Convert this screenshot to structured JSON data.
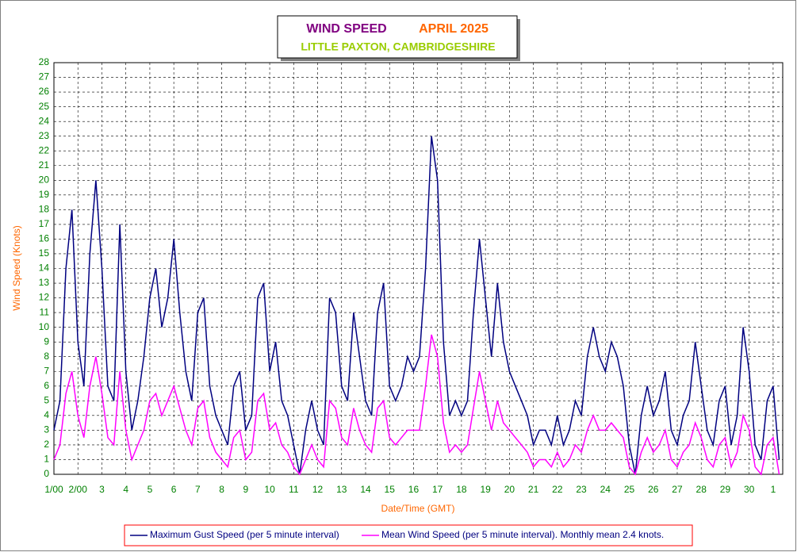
{
  "chart_data": {
    "type": "line",
    "title": "WIND SPEED",
    "title_period": "APRIL 2025",
    "subtitle": "LITTLE PAXTON, CAMBRIDGESHIRE",
    "xlabel": "Date/Time (GMT)",
    "ylabel": "Wind Speed (Knots)",
    "xlim": [
      1,
      31.4
    ],
    "ylim": [
      0,
      28
    ],
    "grid": true,
    "xticks": [
      {
        "value": 1,
        "label": "1/00"
      },
      {
        "value": 2,
        "label": "2/00"
      },
      3,
      4,
      5,
      6,
      7,
      8,
      9,
      10,
      11,
      12,
      13,
      14,
      15,
      16,
      17,
      18,
      19,
      20,
      21,
      22,
      23,
      24,
      25,
      26,
      27,
      28,
      29,
      30,
      {
        "value": 31,
        "label": "1"
      }
    ],
    "yticks": [
      0,
      1,
      2,
      3,
      4,
      5,
      6,
      7,
      8,
      9,
      10,
      11,
      12,
      13,
      14,
      15,
      16,
      17,
      18,
      19,
      20,
      21,
      22,
      23,
      24,
      25,
      26,
      27,
      28
    ],
    "x": [
      1,
      1.25,
      1.5,
      1.75,
      2,
      2.25,
      2.5,
      2.75,
      3,
      3.25,
      3.5,
      3.75,
      4,
      4.25,
      4.5,
      4.75,
      5,
      5.25,
      5.5,
      5.75,
      6,
      6.25,
      6.5,
      6.75,
      7,
      7.25,
      7.5,
      7.75,
      8,
      8.25,
      8.5,
      8.75,
      9,
      9.25,
      9.5,
      9.75,
      10,
      10.25,
      10.5,
      10.75,
      11,
      11.25,
      11.5,
      11.75,
      12,
      12.25,
      12.5,
      12.75,
      13,
      13.25,
      13.5,
      13.75,
      14,
      14.25,
      14.5,
      14.75,
      15,
      15.25,
      15.5,
      15.75,
      16,
      16.25,
      16.5,
      16.75,
      17,
      17.25,
      17.5,
      17.75,
      18,
      18.25,
      18.5,
      18.75,
      19,
      19.25,
      19.5,
      19.75,
      20,
      20.25,
      20.5,
      20.75,
      21,
      21.25,
      21.5,
      21.75,
      22,
      22.25,
      22.5,
      22.75,
      23,
      23.25,
      23.5,
      23.75,
      24,
      24.25,
      24.5,
      24.75,
      25,
      25.25,
      25.5,
      25.75,
      26,
      26.25,
      26.5,
      26.75,
      27,
      27.25,
      27.5,
      27.75,
      28,
      28.25,
      28.5,
      28.75,
      29,
      29.25,
      29.5,
      29.75,
      30,
      30.25,
      30.5,
      30.75,
      31,
      31.25
    ],
    "series": [
      {
        "name": "Maximum Gust Speed (per 5 minute interval)",
        "color": "#000080",
        "values": [
          3,
          5,
          14,
          18,
          9,
          6,
          15,
          20,
          14,
          6,
          5,
          17,
          7,
          3,
          5,
          8,
          12,
          14,
          10,
          12,
          16,
          11,
          7,
          5,
          11,
          12,
          6,
          4,
          3,
          2,
          6,
          7,
          3,
          4,
          12,
          13,
          7,
          9,
          5,
          4,
          2,
          0,
          3,
          5,
          3,
          2,
          12,
          11,
          6,
          5,
          11,
          8,
          5,
          4,
          11,
          13,
          6,
          5,
          6,
          8,
          7,
          8,
          14,
          23,
          20,
          9,
          4,
          5,
          4,
          5,
          11,
          16,
          12,
          8,
          13,
          9,
          7,
          6,
          5,
          4,
          2,
          3,
          3,
          2,
          4,
          2,
          3,
          5,
          4,
          8,
          10,
          8,
          7,
          9,
          8,
          6,
          2,
          0,
          4,
          6,
          4,
          5,
          7,
          3,
          2,
          4,
          5,
          9,
          6,
          3,
          2,
          5,
          6,
          2,
          4,
          10,
          7,
          2,
          1,
          5,
          6,
          1
        ]
      },
      {
        "name": "Mean Wind Speed (per 5 minute interval). Monthly mean 2.4 knots.",
        "color": "#ff00ff",
        "values": [
          1,
          2,
          5.5,
          7,
          4,
          2.5,
          6,
          8,
          5.5,
          2.5,
          2,
          7,
          3,
          1,
          2,
          3,
          5,
          5.5,
          4,
          5,
          6,
          4.5,
          3,
          2,
          4.5,
          5,
          2.5,
          1.5,
          1,
          0.5,
          2.5,
          3,
          1,
          1.5,
          5,
          5.5,
          3,
          3.5,
          2,
          1.5,
          0.5,
          0,
          1,
          2,
          1,
          0.5,
          5,
          4.5,
          2.5,
          2,
          4.5,
          3,
          2,
          1.5,
          4.5,
          5,
          2.5,
          2,
          2.5,
          3,
          3,
          3,
          6,
          9.5,
          8,
          3.5,
          1.5,
          2,
          1.5,
          2,
          4.5,
          7,
          5,
          3,
          5,
          3.5,
          3,
          2.5,
          2,
          1.5,
          0.5,
          1,
          1,
          0.5,
          1.5,
          0.5,
          1,
          2,
          1.5,
          3,
          4,
          3,
          3,
          3.5,
          3,
          2.5,
          0.5,
          0,
          1.5,
          2.5,
          1.5,
          2,
          3,
          1,
          0.5,
          1.5,
          2,
          3.5,
          2.5,
          1,
          0.5,
          2,
          2.5,
          0.5,
          1.5,
          4,
          3,
          0.5,
          0,
          2,
          2.5,
          0
        ]
      }
    ]
  }
}
